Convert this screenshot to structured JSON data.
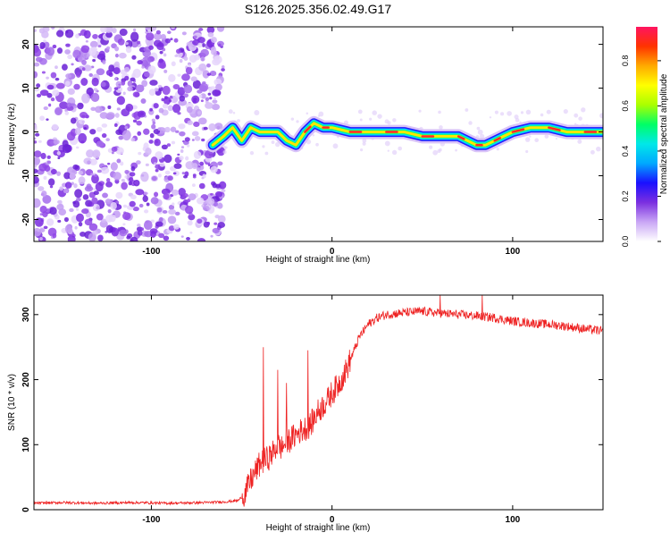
{
  "chart_data": [
    {
      "type": "heatmap",
      "title": "S126.2025.356.02.49.G17",
      "xlabel": "Height of straight line (km)",
      "ylabel": "Frequency (Hz)",
      "xlim": [
        -165,
        150
      ],
      "ylim": [
        -25,
        24
      ],
      "xticks": [
        -100,
        0,
        100
      ],
      "xtick_labels": [
        "-100",
        "0",
        "100"
      ],
      "yticks": [
        20,
        10,
        0,
        -10,
        -20
      ],
      "ytick_labels": [
        "20",
        "10",
        "0",
        "-10",
        "-20"
      ],
      "noise_region_km": [
        -165,
        -60
      ],
      "ridge": {
        "x": [
          -66,
          -60,
          -55,
          -50,
          -45,
          -40,
          -35,
          -30,
          -25,
          -20,
          -15,
          -10,
          -5,
          0,
          10,
          20,
          30,
          40,
          50,
          60,
          70,
          75,
          80,
          85,
          90,
          95,
          100,
          110,
          120,
          130,
          140,
          150
        ],
        "y": [
          -3,
          -1,
          1,
          -2,
          1,
          0,
          0,
          0,
          -2,
          -3,
          0,
          2,
          1,
          1,
          0,
          0,
          0,
          0,
          -1,
          -1,
          -1,
          -2,
          -3,
          -3,
          -2,
          -1,
          0,
          1,
          1,
          0,
          0,
          0
        ]
      },
      "colorbar": {
        "label": "Normalized spectral amplitude",
        "ticks": [
          0.0,
          0.2,
          0.4,
          0.6,
          0.8
        ],
        "tick_labels": [
          "0.0",
          "0.2",
          "0.4",
          "0.6",
          "0.8"
        ],
        "colors": [
          "#ffffff",
          "#c9a6f5",
          "#7b2fe0",
          "#1a10ff",
          "#00a8ff",
          "#00e8e8",
          "#00ff66",
          "#aaff00",
          "#ffff00",
          "#ffaa00",
          "#ff3300",
          "#ff1460"
        ]
      }
    },
    {
      "type": "line",
      "xlabel": "Height of straight line (km)",
      "ylabel": "SNR (10 * v/v)",
      "xlim": [
        -165,
        150
      ],
      "ylim": [
        0,
        330
      ],
      "xticks": [
        -100,
        0,
        100
      ],
      "xtick_labels": [
        "-100",
        "0",
        "100"
      ],
      "yticks": [
        0,
        100,
        200,
        300
      ],
      "ytick_labels": [
        "0",
        "100",
        "200",
        "300"
      ],
      "color": "#ee2222",
      "series": [
        {
          "name": "SNR",
          "x": [
            -165,
            -150,
            -130,
            -110,
            -90,
            -70,
            -60,
            -52,
            -48,
            -45,
            -42,
            -40,
            -38,
            -35,
            -32,
            -30,
            -28,
            -25,
            -22,
            -20,
            -18,
            -15,
            -12,
            -10,
            -8,
            -5,
            -2,
            0,
            3,
            5,
            8,
            10,
            13,
            15,
            20,
            25,
            30,
            40,
            50,
            60,
            70,
            80,
            90,
            100,
            110,
            120,
            130,
            140,
            150
          ],
          "y": [
            10,
            11,
            10,
            11,
            10,
            11,
            12,
            14,
            25,
            45,
            60,
            70,
            75,
            80,
            90,
            100,
            95,
            105,
            110,
            115,
            120,
            125,
            130,
            140,
            150,
            160,
            170,
            180,
            190,
            200,
            215,
            230,
            250,
            265,
            285,
            295,
            300,
            303,
            305,
            302,
            300,
            298,
            295,
            290,
            287,
            285,
            282,
            278,
            275
          ]
        }
      ],
      "spikes": [
        {
          "x": -38,
          "y": 250
        },
        {
          "x": -30,
          "y": 215
        },
        {
          "x": -25,
          "y": 195
        },
        {
          "x": -13,
          "y": 245
        },
        {
          "x": 60,
          "y": 330
        },
        {
          "x": 83,
          "y": 330
        }
      ]
    }
  ]
}
